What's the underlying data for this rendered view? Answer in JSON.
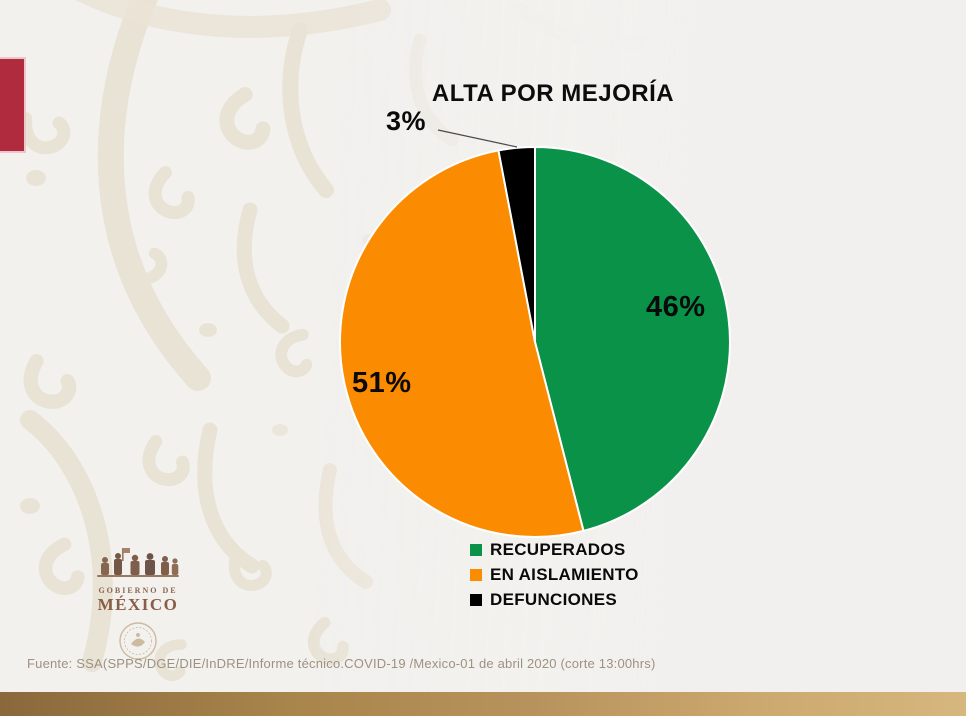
{
  "slide": {
    "source": "Fuente: SSA(SPPS/DGE/DIE/InDRE/Informe técnico.COVID-19 /Mexico-01 de abril 2020 (corte 13:00hrs)"
  },
  "logo": {
    "line1": "GOBIERNO DE",
    "line2": "MÉXICO"
  },
  "theme": {
    "background": "#f2f1ee",
    "pattern_beige": "#e8e1d3",
    "accent_red": "#b12b3f",
    "gold_bar_dark": "#8b683c",
    "gold_bar_light": "#d6b77d",
    "source_text": "#9d9181",
    "logo_brown": "#7d4e35"
  },
  "chart_data": {
    "type": "pie",
    "title": "ALTA POR MEJORÍA",
    "labels": [
      "RECUPERADOS",
      "EN AISLAMIENTO",
      "DEFUNCIONES"
    ],
    "values": [
      46,
      51,
      3
    ],
    "value_labels": [
      "46%",
      "51%",
      "3%"
    ],
    "colors": [
      "#0a9249",
      "#fb8b00",
      "#000000"
    ],
    "start_angle_deg": 0,
    "direction": "clockwise",
    "legend_position": "bottom",
    "slice_separator_color": "#ffffff"
  }
}
